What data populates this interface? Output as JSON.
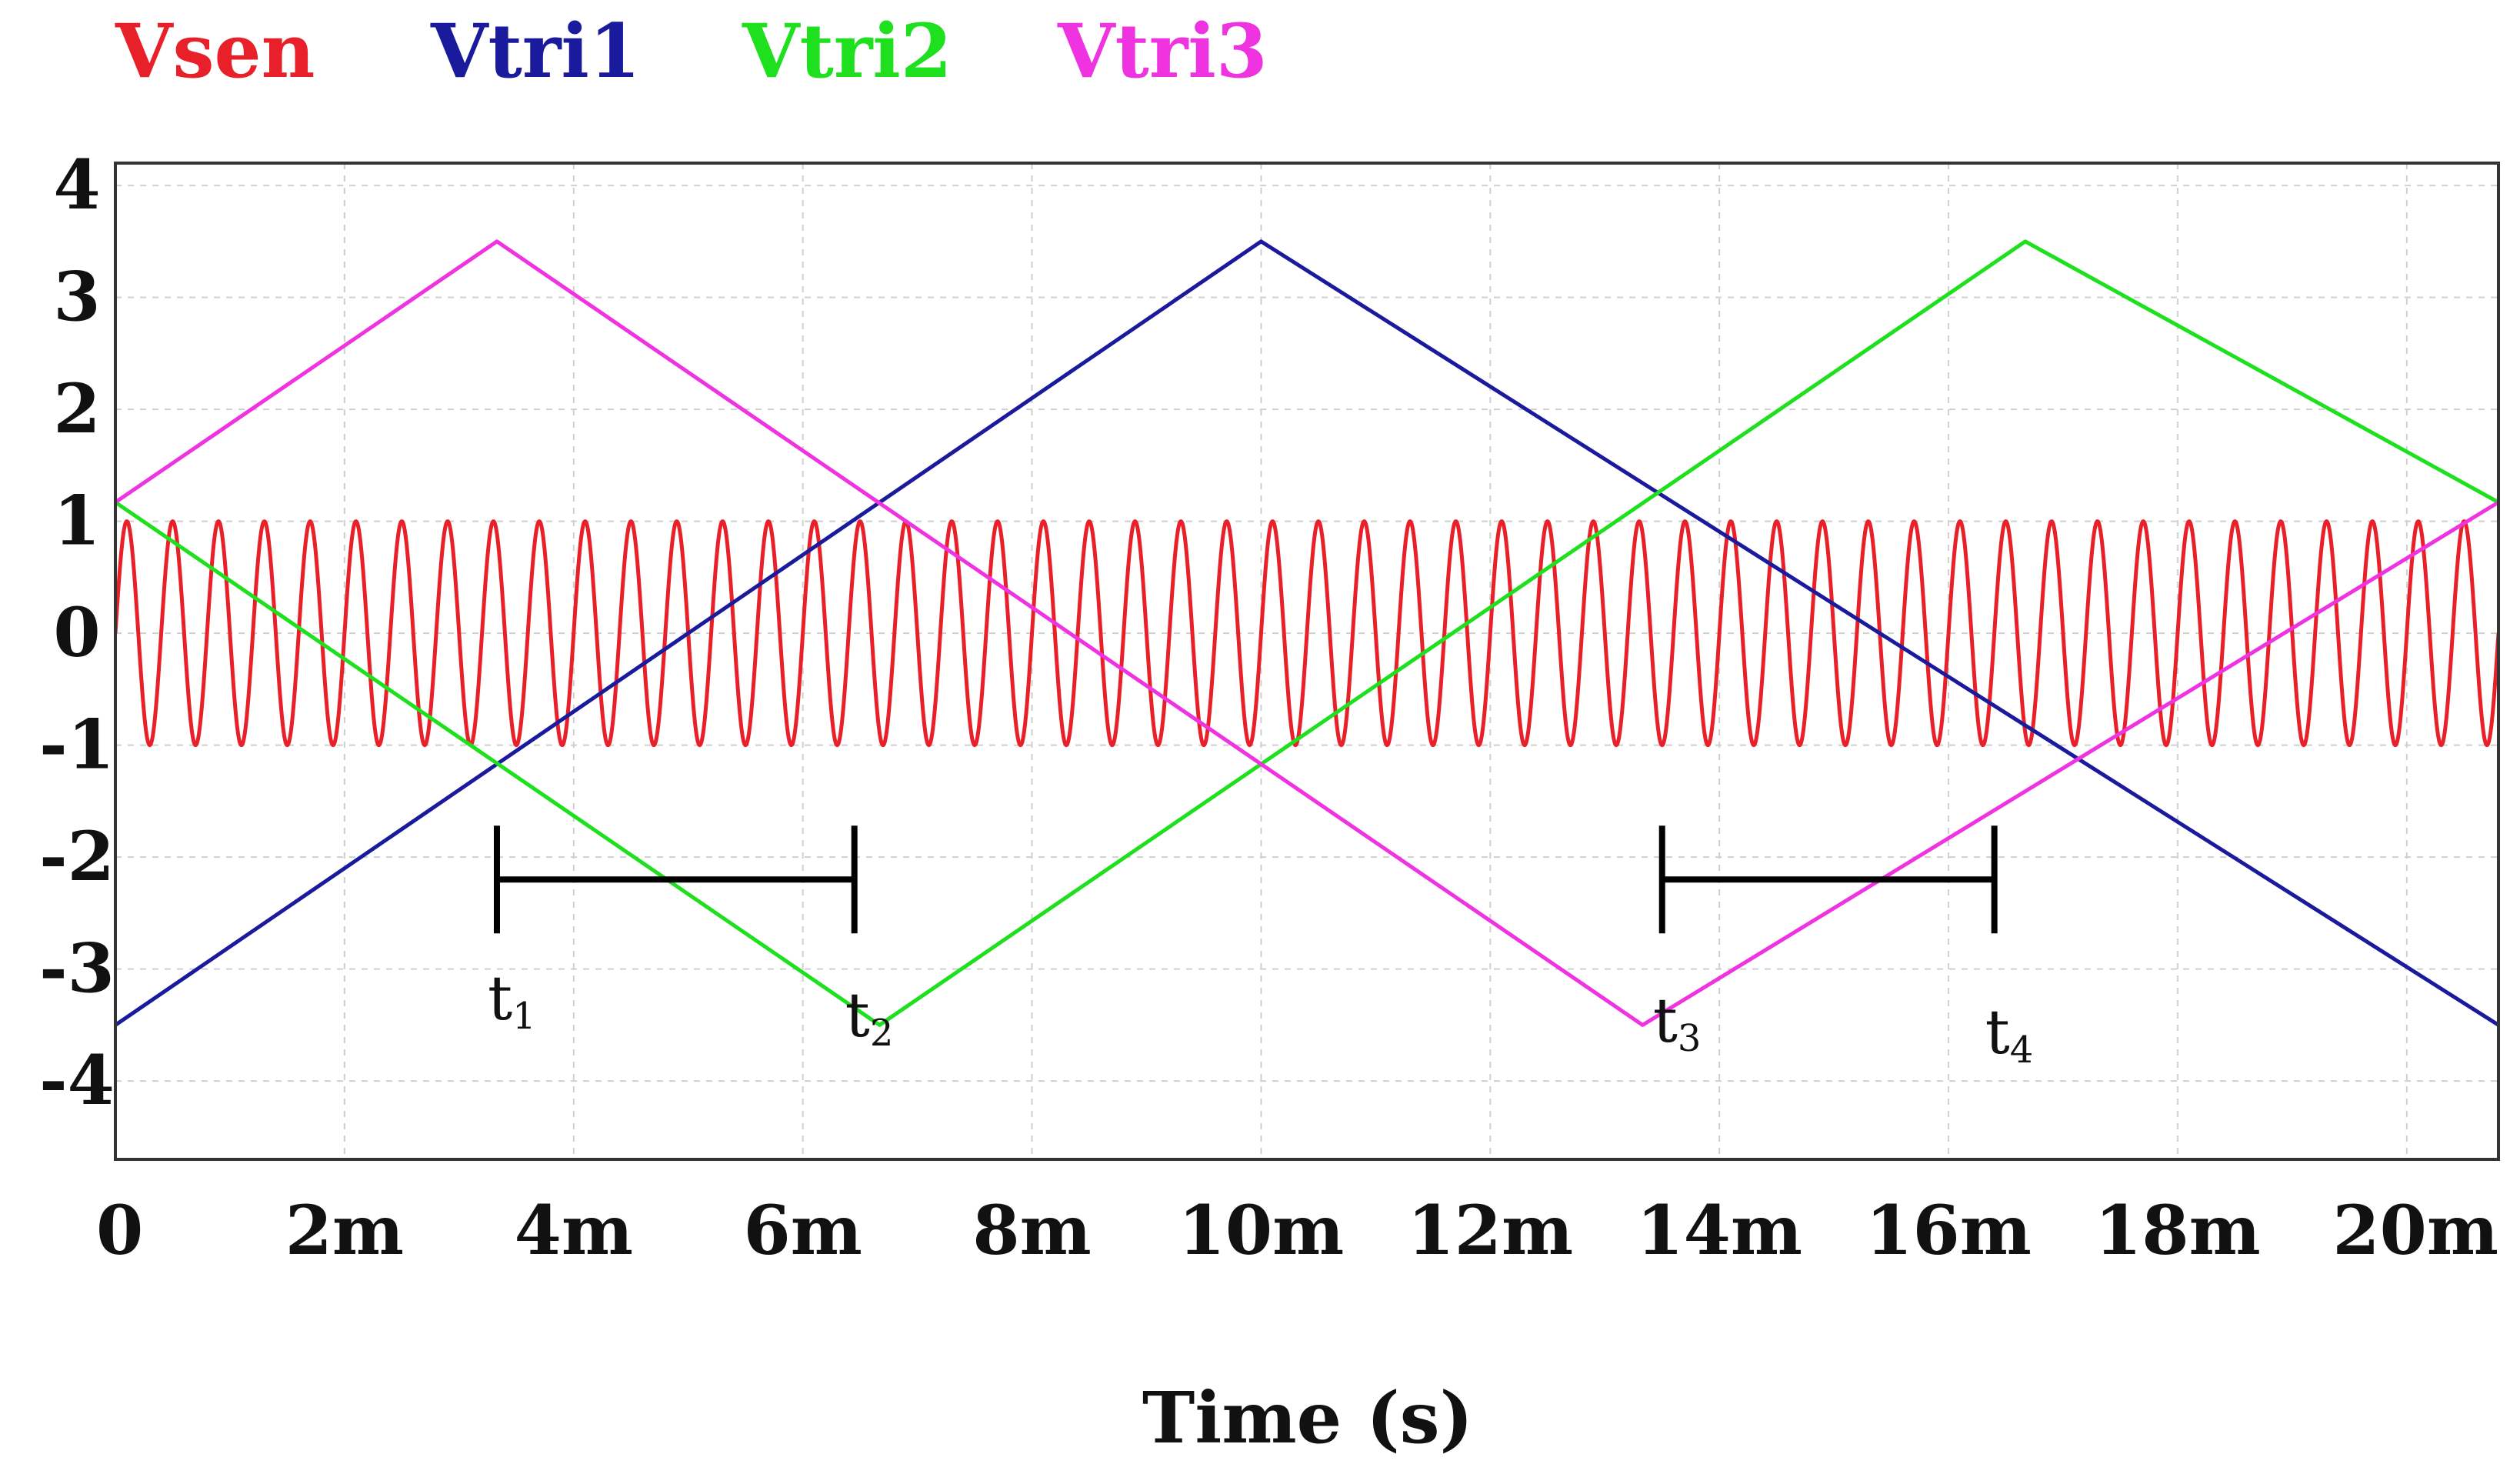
{
  "chart_data": {
    "type": "line",
    "title": "",
    "xlabel": "Time (s)",
    "ylabel": "",
    "xlim": [
      0,
      20.8
    ],
    "ylim": [
      -4.7,
      4.2
    ],
    "x_ticks": [
      {
        "value": 0,
        "label": "0"
      },
      {
        "value": 2,
        "label": "2m"
      },
      {
        "value": 4,
        "label": "4m"
      },
      {
        "value": 6,
        "label": "6m"
      },
      {
        "value": 8,
        "label": "8m"
      },
      {
        "value": 10,
        "label": "10m"
      },
      {
        "value": 12,
        "label": "12m"
      },
      {
        "value": 14,
        "label": "14m"
      },
      {
        "value": 16,
        "label": "16m"
      },
      {
        "value": 18,
        "label": "18m"
      },
      {
        "value": 20,
        "label": "20m"
      }
    ],
    "y_ticks": [
      {
        "value": 4,
        "label": "4"
      },
      {
        "value": 3,
        "label": "3"
      },
      {
        "value": 2,
        "label": "2"
      },
      {
        "value": 1,
        "label": "1"
      },
      {
        "value": 0,
        "label": "0"
      },
      {
        "value": -1,
        "label": "-1"
      },
      {
        "value": -2,
        "label": "-2"
      },
      {
        "value": -3,
        "label": "-3"
      },
      {
        "value": -4,
        "label": "-4"
      }
    ],
    "grid": true,
    "legend_position": "top",
    "series": [
      {
        "name": "Vsen",
        "color": "#e8202a",
        "kind": "sine",
        "amplitude": 1.0,
        "offset": 0.0,
        "frequency_khz": 2.5,
        "phase_deg": 0,
        "x_range": [
          0,
          20.8
        ]
      },
      {
        "name": "Vtri1",
        "color": "#1a1a9c",
        "kind": "polyline",
        "x": [
          0,
          10,
          20.8
        ],
        "y": [
          -3.5,
          3.5,
          -3.5
        ]
      },
      {
        "name": "Vtri2",
        "color": "#1ee01e",
        "kind": "polyline",
        "x": [
          0,
          6.67,
          16.67,
          20.8
        ],
        "y": [
          1.17,
          -3.5,
          3.5,
          1.17
        ]
      },
      {
        "name": "Vtri3",
        "color": "#ef33e0",
        "kind": "polyline",
        "x": [
          0,
          3.33,
          13.33,
          20.8
        ],
        "y": [
          1.17,
          3.5,
          -3.5,
          1.17
        ]
      }
    ],
    "intervals": [
      {
        "name": "t1-t2",
        "x_start": 3.33,
        "x_end": 6.45,
        "y": -2.2
      },
      {
        "name": "t3-t4",
        "x_start": 13.5,
        "x_end": 16.4,
        "y": -2.2
      }
    ],
    "annotations": [
      {
        "text": "t",
        "sub": "1",
        "x": 3.33,
        "y": -3.45
      },
      {
        "text": "t",
        "sub": "2",
        "x": 6.45,
        "y": -3.6
      },
      {
        "text": "t",
        "sub": "3",
        "x": 13.5,
        "y": -3.65
      },
      {
        "text": "t",
        "sub": "4",
        "x": 16.4,
        "y": -3.75
      }
    ]
  }
}
